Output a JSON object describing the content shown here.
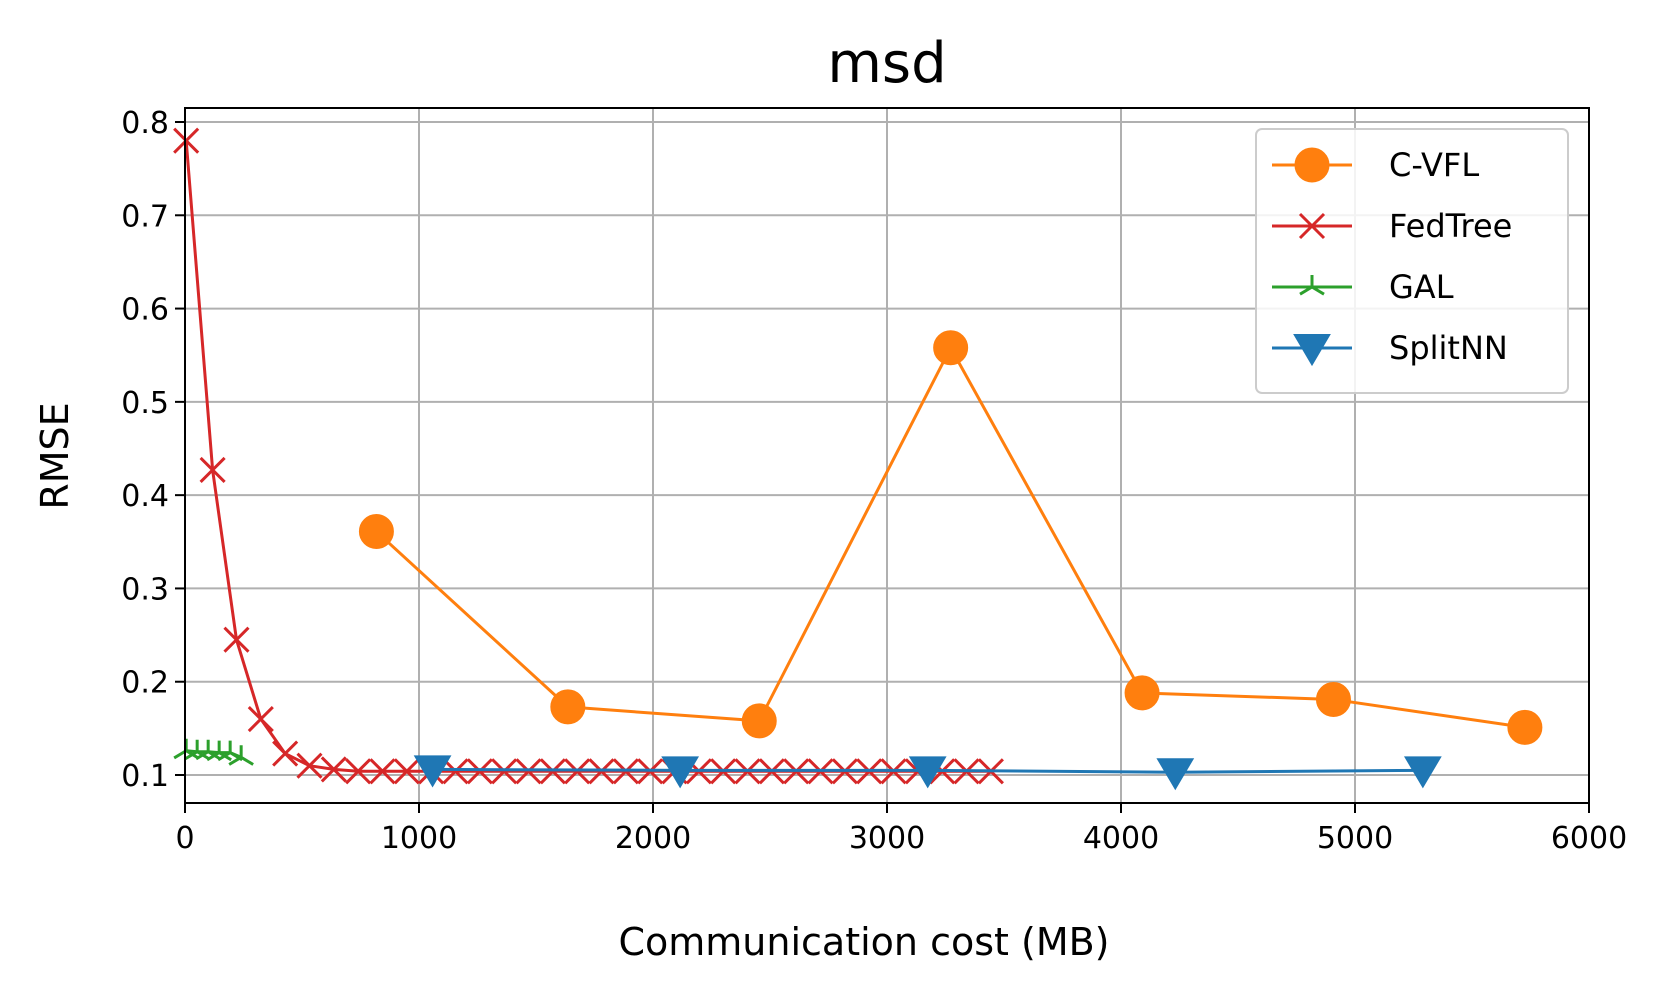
{
  "chart_data": {
    "type": "line",
    "title": "msd",
    "xlabel": "Communication cost (MB)",
    "ylabel": "RMSE",
    "xlim": [
      0,
      6000
    ],
    "ylim": [
      0.07,
      0.815
    ],
    "xticks": [
      0,
      1000,
      2000,
      3000,
      4000,
      5000,
      6000
    ],
    "yticks": [
      0.1,
      0.2,
      0.3,
      0.4,
      0.5,
      0.6,
      0.7,
      0.8
    ],
    "xtick_labels": [
      "0",
      "1000",
      "2000",
      "3000",
      "4000",
      "5000",
      "6000"
    ],
    "ytick_labels": [
      "0.1",
      "0.2",
      "0.3",
      "0.4",
      "0.5",
      "0.6",
      "0.7",
      "0.8"
    ],
    "grid": true,
    "legend_position": "top-right",
    "series": [
      {
        "name": "C-VFL",
        "color": "#ff7f0e",
        "marker": "circle",
        "x": [
          818,
          1636,
          2454,
          3272,
          4090,
          4908,
          5726
        ],
        "y": [
          0.361,
          0.173,
          0.158,
          0.558,
          0.188,
          0.181,
          0.151
        ]
      },
      {
        "name": "FedTree",
        "color": "#d62728",
        "marker": "x",
        "x": [
          5,
          118,
          220,
          324,
          428,
          532,
          636,
          740,
          844,
          948,
          1052,
          1156,
          1260,
          1364,
          1468,
          1572,
          1676,
          1780,
          1884,
          1988,
          2092,
          2196,
          2300,
          2404,
          2508,
          2612,
          2716,
          2820,
          2924,
          3028,
          3132,
          3236,
          3340,
          3444
        ],
        "y": [
          0.78,
          0.427,
          0.245,
          0.16,
          0.123,
          0.11,
          0.106,
          0.104,
          0.104,
          0.104,
          0.104,
          0.104,
          0.104,
          0.104,
          0.104,
          0.104,
          0.104,
          0.104,
          0.104,
          0.104,
          0.104,
          0.104,
          0.104,
          0.104,
          0.104,
          0.104,
          0.104,
          0.104,
          0.104,
          0.104,
          0.104,
          0.104,
          0.104,
          0.104
        ]
      },
      {
        "name": "GAL",
        "color": "#2ca02c",
        "marker": "tri_up",
        "x": [
          5,
          52,
          99,
          146,
          193,
          240
        ],
        "y": [
          0.126,
          0.125,
          0.125,
          0.124,
          0.124,
          0.119
        ]
      },
      {
        "name": "SplitNN",
        "color": "#1f77b4",
        "marker": "triangle_down",
        "x": [
          1058,
          2116,
          3174,
          4232,
          5290
        ],
        "y": [
          0.106,
          0.105,
          0.105,
          0.103,
          0.105
        ]
      }
    ]
  }
}
